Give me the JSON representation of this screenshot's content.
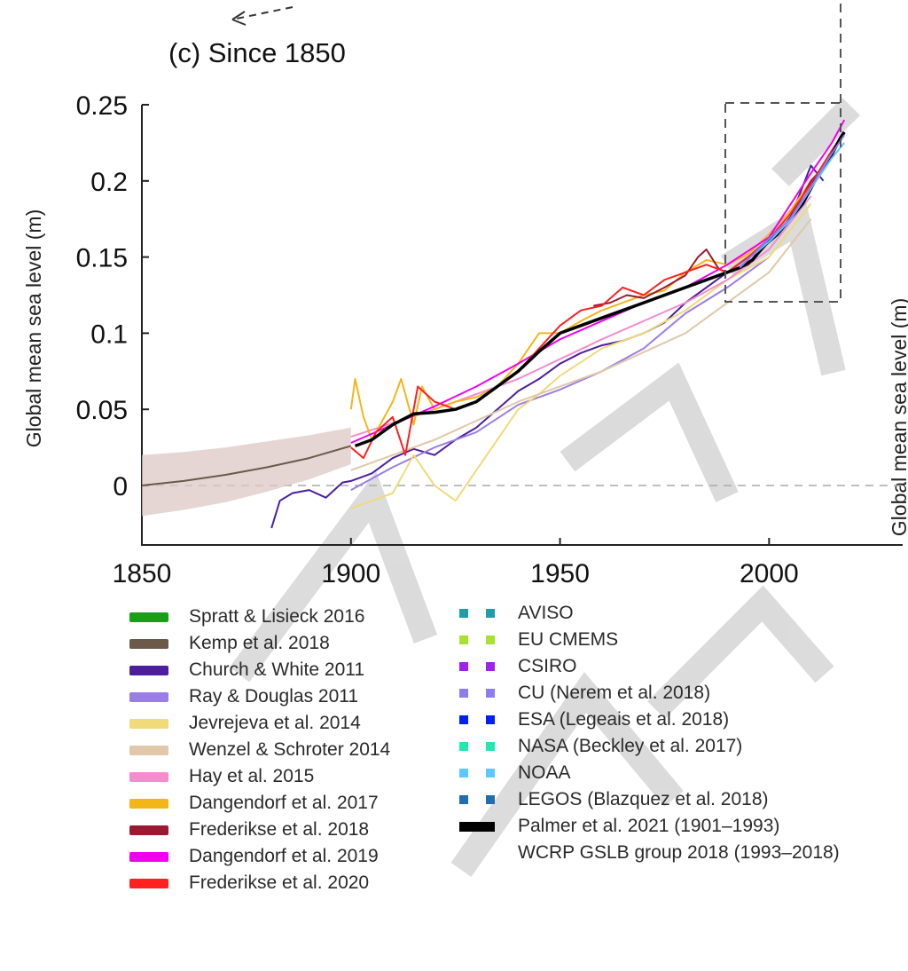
{
  "chart_data": {
    "type": "line",
    "title": "(c)  Since 1850",
    "ylabel": "Global mean sea level (m)",
    "right_axis_label_partial": "Global mean sea level (m)",
    "xlim": [
      1850,
      2030
    ],
    "ylim": [
      -0.04,
      0.25
    ],
    "x_ticks": [
      "1850",
      "1900",
      "1950",
      "2000"
    ],
    "y_ticks": [
      "0.25",
      "0.2",
      "0.15",
      "0.1",
      "0.05",
      "0"
    ],
    "watermark": "ACCEPTED VERSION SUBJECT TO",
    "series": [
      {
        "name": "Kemp et al. 2018",
        "color": "#6b5a4a",
        "band_color": "#dcc8c4",
        "x": [
          1850,
          1860,
          1870,
          1880,
          1890,
          1900
        ],
        "y": [
          0.0,
          0.003,
          0.007,
          0.012,
          0.018,
          0.026
        ],
        "band_low": [
          -0.02,
          -0.016,
          -0.011,
          -0.004,
          0.004,
          0.014
        ],
        "band_high": [
          0.02,
          0.022,
          0.025,
          0.029,
          0.033,
          0.038
        ]
      },
      {
        "name": "Church & White 2011",
        "color": "#4b1f9e",
        "x": [
          1881,
          1883,
          1886,
          1890,
          1894,
          1898,
          1900,
          1905,
          1910,
          1915,
          1920,
          1925,
          1930,
          1935,
          1940,
          1945,
          1950,
          1955,
          1960,
          1965,
          1970,
          1975,
          1980,
          1985,
          1990,
          1995,
          2000,
          2005,
          2010,
          2013
        ],
        "y": [
          -0.028,
          -0.01,
          -0.005,
          -0.003,
          -0.008,
          0.002,
          0.003,
          0.008,
          0.018,
          0.024,
          0.02,
          0.03,
          0.038,
          0.05,
          0.062,
          0.07,
          0.08,
          0.087,
          0.092,
          0.095,
          0.1,
          0.107,
          0.12,
          0.13,
          0.14,
          0.15,
          0.16,
          0.175,
          0.21,
          0.2
        ]
      },
      {
        "name": "Ray & Douglas 2011",
        "color": "#9a7de8",
        "x": [
          1900,
          1910,
          1920,
          1930,
          1940,
          1950,
          1960,
          1970,
          1980,
          1990,
          2000
        ],
        "y": [
          -0.003,
          0.012,
          0.025,
          0.035,
          0.053,
          0.063,
          0.075,
          0.09,
          0.113,
          0.13,
          0.15
        ]
      },
      {
        "name": "Jevrejeva et al. 2014",
        "color": "#f0da7a",
        "x": [
          1900,
          1905,
          1910,
          1915,
          1920,
          1925,
          1930,
          1935,
          1940,
          1945,
          1950,
          1960,
          1970,
          1980,
          1990,
          2000,
          2010
        ],
        "y": [
          -0.015,
          -0.01,
          -0.005,
          0.02,
          0.0,
          -0.01,
          0.01,
          0.03,
          0.05,
          0.06,
          0.072,
          0.09,
          0.1,
          0.115,
          0.135,
          0.15,
          0.185
        ]
      },
      {
        "name": "Wenzel & Schroter 2014",
        "color": "#e0c8a8",
        "x": [
          1900,
          1920,
          1940,
          1960,
          1980,
          2000,
          2010
        ],
        "y": [
          0.01,
          0.03,
          0.055,
          0.075,
          0.1,
          0.14,
          0.175
        ]
      },
      {
        "name": "Hay et al. 2015",
        "color": "#f48ccd",
        "x": [
          1900,
          1920,
          1940,
          1960,
          1980,
          1990,
          2000,
          2010
        ],
        "y": [
          0.032,
          0.05,
          0.07,
          0.096,
          0.12,
          0.135,
          0.155,
          0.19
        ]
      },
      {
        "name": "Dangendorf et al. 2017",
        "color": "#f2b619",
        "x": [
          1900,
          1901,
          1903,
          1905,
          1907,
          1910,
          1912,
          1915,
          1917,
          1920,
          1925,
          1930,
          1935,
          1940,
          1945,
          1950,
          1955,
          1960,
          1965,
          1970,
          1975,
          1980,
          1985,
          1990,
          1995,
          2000,
          2005,
          2010,
          2015
        ],
        "y": [
          0.05,
          0.07,
          0.045,
          0.03,
          0.04,
          0.055,
          0.07,
          0.04,
          0.065,
          0.05,
          0.055,
          0.058,
          0.065,
          0.08,
          0.1,
          0.1,
          0.108,
          0.115,
          0.12,
          0.125,
          0.128,
          0.14,
          0.148,
          0.145,
          0.152,
          0.165,
          0.18,
          0.2,
          0.215
        ]
      },
      {
        "name": "Frederikse et al. 2018",
        "color": "#9b1a32",
        "x": [
          1958,
          1962,
          1966,
          1970,
          1975,
          1980,
          1983,
          1985,
          1988,
          1990,
          1995,
          2000,
          2005,
          2010,
          2014
        ],
        "y": [
          0.118,
          0.12,
          0.125,
          0.123,
          0.13,
          0.138,
          0.15,
          0.155,
          0.142,
          0.14,
          0.145,
          0.16,
          0.175,
          0.2,
          0.212
        ]
      },
      {
        "name": "Dangendorf et al. 2019",
        "color": "#f000f0",
        "x": [
          1900,
          1910,
          1920,
          1930,
          1940,
          1950,
          1960,
          1970,
          1980,
          1990,
          2000,
          2010,
          2015,
          2018
        ],
        "y": [
          0.028,
          0.04,
          0.052,
          0.065,
          0.08,
          0.096,
          0.108,
          0.12,
          0.13,
          0.145,
          0.163,
          0.205,
          0.225,
          0.24
        ]
      },
      {
        "name": "Frederikse et al. 2020",
        "color": "#ff2020",
        "x": [
          1900,
          1903,
          1906,
          1910,
          1913,
          1916,
          1920,
          1925,
          1930,
          1935,
          1940,
          1945,
          1950,
          1955,
          1960,
          1965,
          1970,
          1975,
          1980,
          1985,
          1990,
          1995,
          2000,
          2005,
          2010,
          2015,
          2018
        ],
        "y": [
          0.025,
          0.018,
          0.035,
          0.045,
          0.02,
          0.065,
          0.055,
          0.05,
          0.055,
          0.065,
          0.075,
          0.09,
          0.105,
          0.115,
          0.118,
          0.13,
          0.125,
          0.135,
          0.14,
          0.145,
          0.14,
          0.15,
          0.162,
          0.178,
          0.198,
          0.22,
          0.232
        ]
      },
      {
        "name": "Palmer et al. 2021 (1901–1993)",
        "color": "#000000",
        "x": [
          1901,
          1905,
          1910,
          1915,
          1920,
          1925,
          1930,
          1935,
          1940,
          1945,
          1950,
          1955,
          1960,
          1965,
          1970,
          1975,
          1980,
          1985,
          1990,
          1993
        ],
        "y": [
          0.026,
          0.03,
          0.04,
          0.047,
          0.048,
          0.05,
          0.055,
          0.065,
          0.075,
          0.088,
          0.1,
          0.105,
          0.11,
          0.115,
          0.12,
          0.125,
          0.13,
          0.135,
          0.14,
          0.143
        ]
      },
      {
        "name": "WCRP GSLB group 2018 (1993–2018)",
        "color": "#000000",
        "x": [
          1993,
          1996,
          1999,
          2002,
          2005,
          2008,
          2011,
          2014,
          2017,
          2018
        ],
        "y": [
          0.143,
          0.148,
          0.158,
          0.165,
          0.175,
          0.185,
          0.2,
          0.212,
          0.228,
          0.232
        ]
      },
      {
        "name": "NOAA",
        "color": "#5cc8ff",
        "x": [
          1993,
          2000,
          2005,
          2010,
          2015,
          2018
        ],
        "y": [
          0.144,
          0.16,
          0.174,
          0.195,
          0.215,
          0.225
        ]
      },
      {
        "name": "CU (Nerem et al. 2018)",
        "color": "#8c7df0",
        "x": [
          1993,
          2000,
          2005,
          2010,
          2015,
          2018
        ],
        "y": [
          0.143,
          0.162,
          0.175,
          0.196,
          0.218,
          0.23
        ]
      }
    ],
    "legend_left": [
      {
        "name": "Spratt & Lisieck 2016",
        "color": "#1a9e1a"
      },
      {
        "name": "Kemp et al. 2018",
        "color": "#6b5a4a"
      },
      {
        "name": "Church & White 2011",
        "color": "#4b1f9e"
      },
      {
        "name": "Ray & Douglas 2011",
        "color": "#9a7de8"
      },
      {
        "name": "Jevrejeva et al. 2014",
        "color": "#f0da7a"
      },
      {
        "name": "Wenzel & Schroter 2014",
        "color": "#e0c8a8"
      },
      {
        "name": "Hay et al. 2015",
        "color": "#f48ccd"
      },
      {
        "name": "Dangendorf et al. 2017",
        "color": "#f2b619"
      },
      {
        "name": "Frederikse et al. 2018",
        "color": "#9b1a32"
      },
      {
        "name": "Dangendorf et al. 2019",
        "color": "#f000f0"
      },
      {
        "name": "Frederikse et al. 2020",
        "color": "#ff2020"
      }
    ],
    "legend_right": [
      {
        "name": "AVISO",
        "color": "#1f9eaa",
        "style": "squares"
      },
      {
        "name": "EU CMEMS",
        "color": "#a6e22e",
        "style": "squares"
      },
      {
        "name": "CSIRO",
        "color": "#a020f0",
        "style": "squares"
      },
      {
        "name": "CU (Nerem et al. 2018)",
        "color": "#8c7df0",
        "style": "squares"
      },
      {
        "name": "ESA (Legeais et al. 2018)",
        "color": "#0020f0",
        "style": "squares"
      },
      {
        "name": "NASA (Beckley et al. 2017)",
        "color": "#20e8b0",
        "style": "squares"
      },
      {
        "name": "NOAA",
        "color": "#5cc8ff",
        "style": "squares"
      },
      {
        "name": "LEGOS (Blazquez et al. 2018)",
        "color": "#1f6fb0",
        "style": "squares"
      },
      {
        "name": "Palmer et al. 2021 (1901–1993)",
        "color": "#000000",
        "style": "bar"
      },
      {
        "name": "WCRP GSLB group 2018 (1993–2018)",
        "color": "#000000",
        "style": "none"
      }
    ]
  }
}
